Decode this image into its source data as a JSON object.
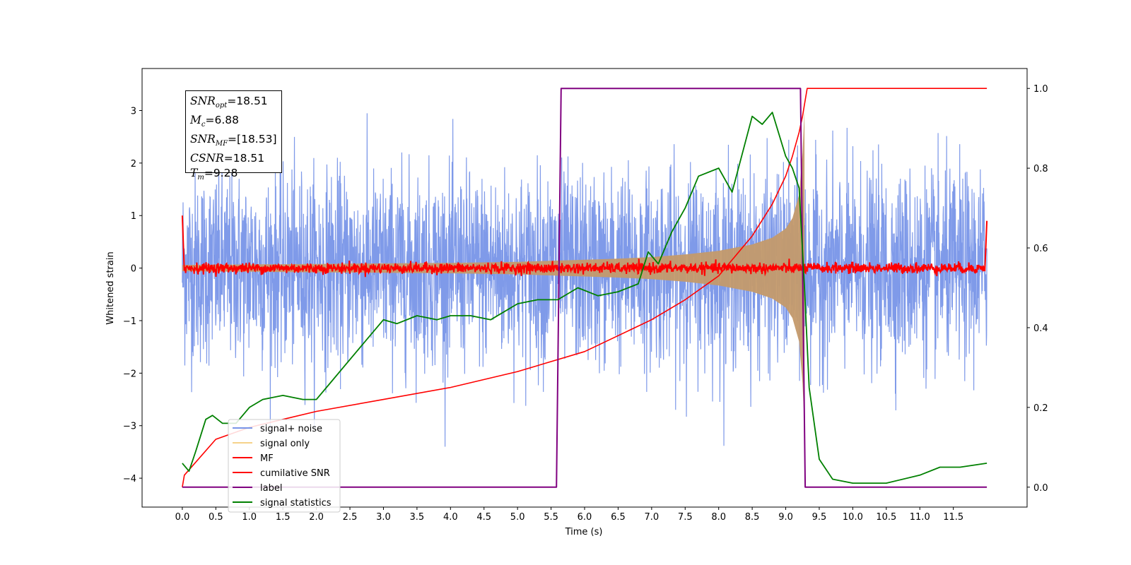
{
  "chart_data": {
    "type": "line",
    "xlabel": "Time (s)",
    "ylabel": "Whitened strain",
    "xlim": [
      -0.6,
      12.6
    ],
    "ylim": [
      -4.55,
      3.8
    ],
    "ylim_right": [
      -0.05,
      1.05
    ],
    "x_ticks": [
      "0.0",
      "0.5",
      "1.0",
      "1.5",
      "2.0",
      "2.5",
      "3.0",
      "3.5",
      "4.0",
      "4.5",
      "5.0",
      "5.5",
      "6.0",
      "6.5",
      "7.0",
      "7.5",
      "8.0",
      "8.5",
      "9.0",
      "9.5",
      "10.0",
      "10.5",
      "11.0",
      "11.5"
    ],
    "y_ticks_left": [
      "3",
      "2",
      "1",
      "0",
      "−1",
      "−2",
      "−3",
      "−4"
    ],
    "y_ticks_right": [
      "1.0",
      "0.8",
      "0.6",
      "0.4",
      "0.2",
      "0.0"
    ],
    "annotation": {
      "snr_opt_label": "SNR",
      "snr_opt_sub": "opt",
      "snr_opt_value": "=18.51",
      "mc_label": "M",
      "mc_sub": "c",
      "mc_value": "=6.88",
      "snr_mf_label": "SNR",
      "snr_mf_sub": "MF",
      "snr_mf_value": "=[18.53]",
      "csnr_label": "CSNR",
      "csnr_value": "=18.51",
      "tm_label": "T",
      "tm_sub": "m",
      "tm_value": "=9.28"
    },
    "legend": [
      "signal+ noise",
      "signal only",
      "MF",
      "cumilative SNR",
      "label",
      "signal statistics"
    ],
    "legend_position": "lower-left",
    "colors": {
      "signal_noise": "#7895e8",
      "signal_only": "#c49a6c",
      "signal_only_legend": "#f5d28a",
      "mf": "#ff0000",
      "cumulative_snr": "#ff0000",
      "label": "#800080",
      "signal_statistics": "#008000"
    },
    "series": [
      {
        "name": "signal+ noise",
        "axis": "left",
        "x_range": [
          0.0,
          12.0
        ],
        "amplitude_typical": 1.5,
        "amplitude_max": 3.4
      },
      {
        "name": "signal only",
        "axis": "left",
        "envelope": {
          "x": [
            0.0,
            1.0,
            2.0,
            3.0,
            4.0,
            5.0,
            5.5,
            6.0,
            6.5,
            7.0,
            7.5,
            8.0,
            8.5,
            8.8,
            9.0,
            9.1,
            9.2,
            9.25,
            9.28
          ],
          "y": [
            0.06,
            0.07,
            0.08,
            0.09,
            0.1,
            0.12,
            0.14,
            0.16,
            0.18,
            0.21,
            0.26,
            0.33,
            0.45,
            0.58,
            0.75,
            0.95,
            1.4,
            2.2,
            3.0
          ]
        }
      },
      {
        "name": "MF",
        "axis": "left",
        "x_range": [
          0.0,
          12.0
        ],
        "level": 0.0,
        "noise": 0.05,
        "edges": {
          "start": 1.0,
          "end": 0.9
        }
      },
      {
        "name": "cumilative SNR",
        "axis": "right",
        "x": [
          0.0,
          0.03,
          0.5,
          1.0,
          2.0,
          3.0,
          4.0,
          5.0,
          6.0,
          7.0,
          7.5,
          8.0,
          8.5,
          8.8,
          9.0,
          9.1,
          9.2,
          9.25,
          9.28,
          9.32,
          12.0
        ],
        "y": [
          0.0,
          0.03,
          0.12,
          0.15,
          0.19,
          0.22,
          0.25,
          0.29,
          0.34,
          0.42,
          0.47,
          0.53,
          0.63,
          0.71,
          0.78,
          0.83,
          0.89,
          0.93,
          0.96,
          1.0,
          1.0
        ]
      },
      {
        "name": "label",
        "axis": "right",
        "x": [
          0.0,
          5.58,
          5.65,
          9.22,
          9.29,
          12.0
        ],
        "y": [
          0.0,
          0.0,
          1.0,
          1.0,
          0.0,
          0.0
        ]
      },
      {
        "name": "signal statistics",
        "axis": "right",
        "x": [
          0.0,
          0.1,
          0.2,
          0.35,
          0.45,
          0.6,
          0.8,
          1.0,
          1.2,
          1.5,
          1.8,
          2.0,
          2.2,
          2.4,
          2.6,
          2.8,
          3.0,
          3.2,
          3.5,
          3.8,
          4.0,
          4.3,
          4.6,
          5.0,
          5.3,
          5.6,
          5.9,
          6.2,
          6.5,
          6.8,
          6.95,
          7.1,
          7.3,
          7.5,
          7.7,
          8.0,
          8.2,
          8.5,
          8.65,
          8.8,
          9.0,
          9.1,
          9.2,
          9.28,
          9.35,
          9.5,
          9.7,
          10.0,
          10.5,
          11.0,
          11.3,
          11.6,
          12.0
        ],
        "y": [
          0.06,
          0.04,
          0.09,
          0.17,
          0.18,
          0.16,
          0.16,
          0.2,
          0.22,
          0.23,
          0.22,
          0.22,
          0.26,
          0.3,
          0.34,
          0.38,
          0.42,
          0.41,
          0.43,
          0.42,
          0.43,
          0.43,
          0.42,
          0.46,
          0.47,
          0.47,
          0.5,
          0.48,
          0.49,
          0.51,
          0.59,
          0.56,
          0.64,
          0.7,
          0.78,
          0.8,
          0.74,
          0.93,
          0.91,
          0.94,
          0.83,
          0.8,
          0.75,
          0.5,
          0.25,
          0.07,
          0.02,
          0.01,
          0.01,
          0.03,
          0.05,
          0.05,
          0.06
        ]
      }
    ]
  }
}
